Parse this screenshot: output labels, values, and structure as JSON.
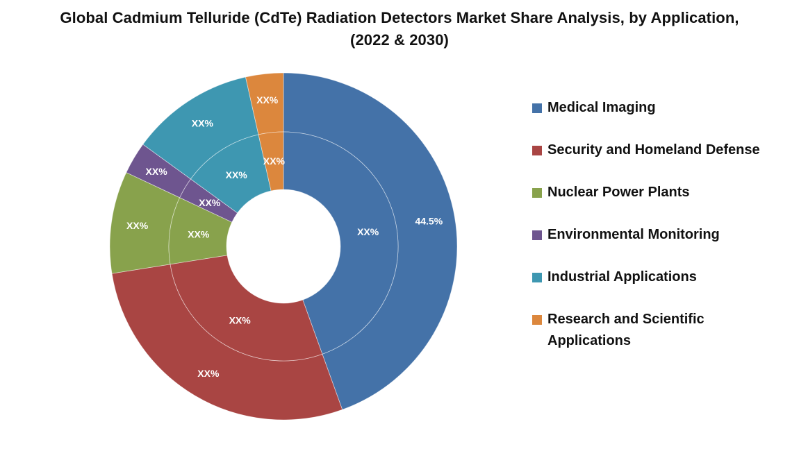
{
  "chart_data": {
    "type": "donut",
    "title_lines": [
      "Global Cadmium Telluride (CdTe) Radiation Detectors Market Share Analysis, by Application,",
      "(2022 & 2030)"
    ],
    "legend_position": "right",
    "categories": [
      "Medical Imaging",
      "Security and Homeland Defense",
      "Nuclear Power Plants",
      "Environmental Monitoring",
      "Industrial Applications",
      "Research and Scientific Applications"
    ],
    "colors": [
      "#4472A8",
      "#A94543",
      "#88A24C",
      "#6E558F",
      "#3E97B1",
      "#DC873D"
    ],
    "series": [
      {
        "ring": "outer",
        "values": [
          44.5,
          28.0,
          9.5,
          3.0,
          11.5,
          3.5
        ],
        "labels": [
          "44.5%",
          "XX%",
          "XX%",
          "XX%",
          "XX%",
          "XX%"
        ]
      },
      {
        "ring": "inner",
        "values": [
          44.5,
          28.0,
          9.5,
          3.0,
          11.5,
          3.5
        ],
        "labels": [
          "XX%",
          "XX%",
          "XX%",
          "XX%",
          "XX%",
          "XX%"
        ]
      }
    ]
  },
  "legend": {
    "items": [
      "Medical Imaging",
      "Security and Homeland Defense",
      "Nuclear Power Plants",
      "Environmental Monitoring",
      "Industrial Applications",
      "Research and Scientific Applications"
    ]
  }
}
